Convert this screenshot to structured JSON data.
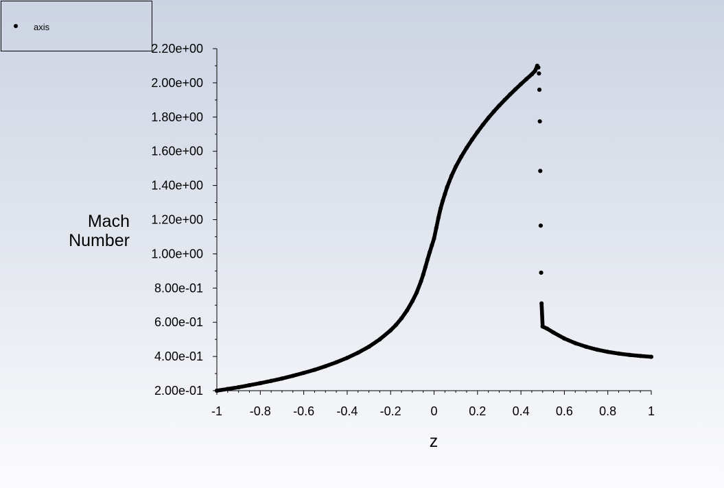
{
  "chart_data": {
    "type": "scatter",
    "xlabel": "z",
    "ylabel_lines": [
      "Mach",
      "Number"
    ],
    "xlim": [
      -1,
      1
    ],
    "ylim": [
      0.2,
      2.2
    ],
    "xticks": [
      "-1",
      "-0.8",
      "-0.6",
      "-0.4",
      "-0.2",
      "0",
      "0.2",
      "0.4",
      "0.6",
      "0.8",
      "1"
    ],
    "xtick_values": [
      -1,
      -0.8,
      -0.6,
      -0.4,
      -0.2,
      0,
      0.2,
      0.4,
      0.6,
      0.8,
      1
    ],
    "yticks": [
      "2.00e-01",
      "4.00e-01",
      "6.00e-01",
      "8.00e-01",
      "1.00e+00",
      "1.20e+00",
      "1.40e+00",
      "1.60e+00",
      "1.80e+00",
      "2.00e+00",
      "2.20e+00"
    ],
    "ytick_values": [
      0.2,
      0.4,
      0.6,
      0.8,
      1.0,
      1.2,
      1.4,
      1.6,
      1.8,
      2.0,
      2.2
    ],
    "legend": {
      "position": "top-left",
      "entries": [
        "axis"
      ]
    },
    "series": [
      {
        "name": "axis",
        "color": "#000000",
        "x": [
          -1.0,
          -0.95,
          -0.9,
          -0.85,
          -0.8,
          -0.75,
          -0.7,
          -0.65,
          -0.6,
          -0.55,
          -0.5,
          -0.45,
          -0.4,
          -0.35,
          -0.3,
          -0.25,
          -0.2,
          -0.175,
          -0.15,
          -0.125,
          -0.1,
          -0.08,
          -0.06,
          -0.05,
          -0.04,
          -0.03,
          -0.02,
          -0.01,
          0.0,
          0.01,
          0.02,
          0.03,
          0.04,
          0.05,
          0.06,
          0.08,
          0.1,
          0.125,
          0.15,
          0.175,
          0.2,
          0.225,
          0.25,
          0.275,
          0.3,
          0.325,
          0.35,
          0.375,
          0.4,
          0.425,
          0.45,
          0.465,
          0.475,
          0.48,
          0.483,
          0.485,
          0.487,
          0.489,
          0.491,
          0.493,
          0.495,
          0.5,
          0.52,
          0.55,
          0.6,
          0.65,
          0.7,
          0.75,
          0.8,
          0.85,
          0.9,
          0.95,
          1.0
        ],
        "y": [
          0.2,
          0.21,
          0.22,
          0.232,
          0.244,
          0.257,
          0.271,
          0.287,
          0.304,
          0.322,
          0.343,
          0.366,
          0.392,
          0.422,
          0.457,
          0.5,
          0.553,
          0.585,
          0.623,
          0.668,
          0.723,
          0.774,
          0.84,
          0.879,
          0.922,
          0.967,
          1.01,
          1.05,
          1.09,
          1.15,
          1.21,
          1.265,
          1.31,
          1.35,
          1.39,
          1.455,
          1.51,
          1.568,
          1.62,
          1.668,
          1.713,
          1.755,
          1.795,
          1.832,
          1.867,
          1.9,
          1.932,
          1.963,
          1.993,
          2.022,
          2.05,
          2.07,
          2.1,
          2.09,
          2.055,
          1.96,
          1.775,
          1.485,
          1.165,
          0.89,
          0.71,
          0.575,
          0.563,
          0.54,
          0.505,
          0.478,
          0.457,
          0.44,
          0.427,
          0.417,
          0.409,
          0.403,
          0.398
        ]
      }
    ]
  }
}
